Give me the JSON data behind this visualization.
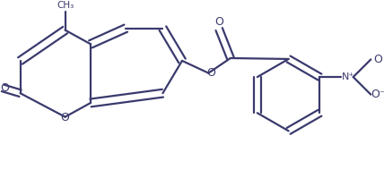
{
  "background_color": "#ffffff",
  "line_color": "#3a3a6e",
  "line_width": 1.6,
  "figsize": [
    4.28,
    1.9
  ],
  "dpi": 100,
  "xlim": [
    0,
    428
  ],
  "ylim": [
    0,
    190
  ]
}
